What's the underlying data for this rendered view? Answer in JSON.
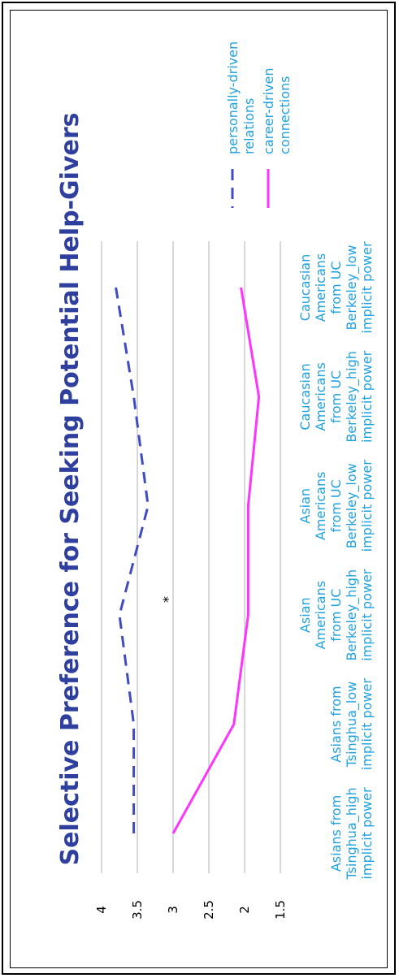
{
  "chart_data": {
    "type": "line",
    "title": "Selective Preference for Seeking Potential Help-Givers",
    "categories": [
      [
        "Asians from",
        "Tsinghua_high",
        "implicit power"
      ],
      [
        "Asians from",
        "Tsinghua_low",
        "implicit power"
      ],
      [
        "Asian",
        "Americans",
        "from UC",
        "Berkeley_high",
        "implicit power"
      ],
      [
        "Asian",
        "Americans",
        "from UC",
        "Berkeley_low",
        "implicit power"
      ],
      [
        "Caucasian",
        "Americans",
        "from UC",
        "Berkeley_high",
        "implicit power"
      ],
      [
        "Caucasian",
        "Americans",
        "from UC",
        "Berkeley_low",
        "implicit power"
      ]
    ],
    "series": [
      {
        "name": [
          "personally-driven",
          "relations"
        ],
        "color": "#3f4bc4",
        "dash": "dashed",
        "values": [
          3.55,
          3.55,
          3.75,
          3.35,
          3.55,
          3.8
        ]
      },
      {
        "name": [
          "career-driven",
          "connections"
        ],
        "color": "#ff33ff",
        "dash": "solid",
        "values": [
          3.0,
          2.15,
          1.95,
          1.95,
          1.8,
          2.05
        ]
      }
    ],
    "ylim": [
      1.5,
      4
    ],
    "yticks": [
      "4",
      "3.5",
      "3",
      "2.5",
      "2",
      "1.5"
    ],
    "annotation": "*",
    "grid": true,
    "legend": "right"
  }
}
